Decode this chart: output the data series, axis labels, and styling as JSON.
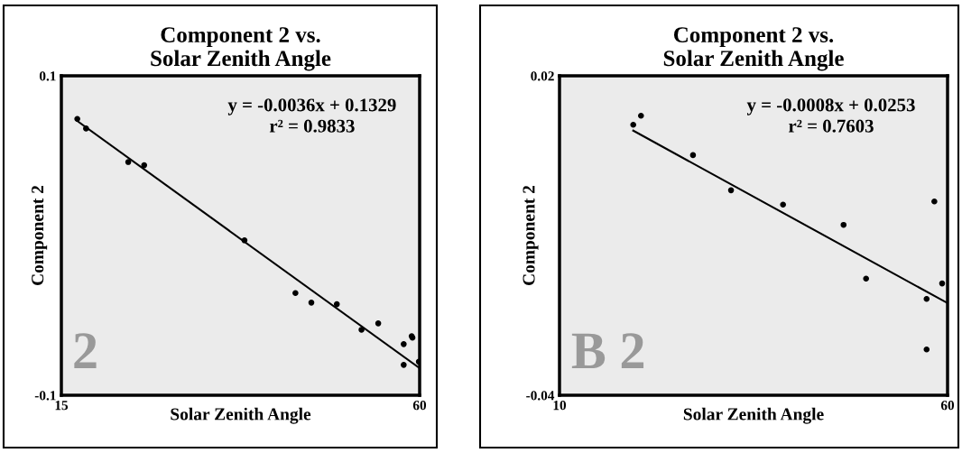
{
  "chart_data": [
    {
      "type": "scatter",
      "title": "Component 2 vs.\nSolar Zenith Angle",
      "xlabel": "Solar Zenith Angle",
      "ylabel": "Component 2",
      "xlim": [
        15,
        60
      ],
      "ylim": [
        -0.1,
        0.1
      ],
      "xticks": [
        15,
        60
      ],
      "yticks": [
        -0.1,
        0.1
      ],
      "legend": false,
      "annotations": [
        "y = -0.0036x + 0.1329\nr² = 0.9833",
        "2"
      ],
      "series": [
        {
          "marker": "circle",
          "color": "#000000",
          "x": [
            17.0,
            18.1,
            23.4,
            25.4,
            38.0,
            44.4,
            46.4,
            49.6,
            52.7,
            54.8,
            58.0,
            58.0,
            59.0,
            59.1,
            59.9
          ],
          "values": [
            0.073,
            0.067,
            0.046,
            0.044,
            -0.003,
            -0.036,
            -0.042,
            -0.043,
            -0.059,
            -0.055,
            -0.068,
            -0.081,
            -0.063,
            -0.064,
            -0.079
          ]
        },
        {
          "type": "line",
          "color": "#000000",
          "x": [
            17.0,
            60.0
          ],
          "values": [
            0.0717,
            -0.0831
          ]
        }
      ]
    },
    {
      "type": "scatter",
      "title": "Component 2 vs.\nSolar Zenith Angle",
      "xlabel": "Solar Zenith Angle",
      "ylabel": "Component 2",
      "xlim": [
        10,
        60
      ],
      "ylim": [
        -0.04,
        0.02
      ],
      "xticks": [
        10,
        60
      ],
      "yticks": [
        -0.04,
        0.02
      ],
      "legend": false,
      "annotations": [
        "y = -0.0008x + 0.0253\nr² = 0.7603",
        "B 2"
      ],
      "series": [
        {
          "marker": "circle",
          "color": "#000000",
          "x": [
            19.5,
            20.5,
            27.2,
            32.1,
            38.8,
            46.6,
            49.5,
            57.3,
            58.3,
            59.3,
            57.3
          ],
          "values": [
            0.0108,
            0.0125,
            0.0051,
            -0.0015,
            -0.0042,
            -0.008,
            -0.0181,
            -0.0219,
            -0.0036,
            -0.019,
            -0.0314
          ]
        },
        {
          "type": "line",
          "color": "#000000",
          "x": [
            19.5,
            60.0
          ],
          "values": [
            0.0097,
            -0.0227
          ]
        }
      ]
    }
  ]
}
